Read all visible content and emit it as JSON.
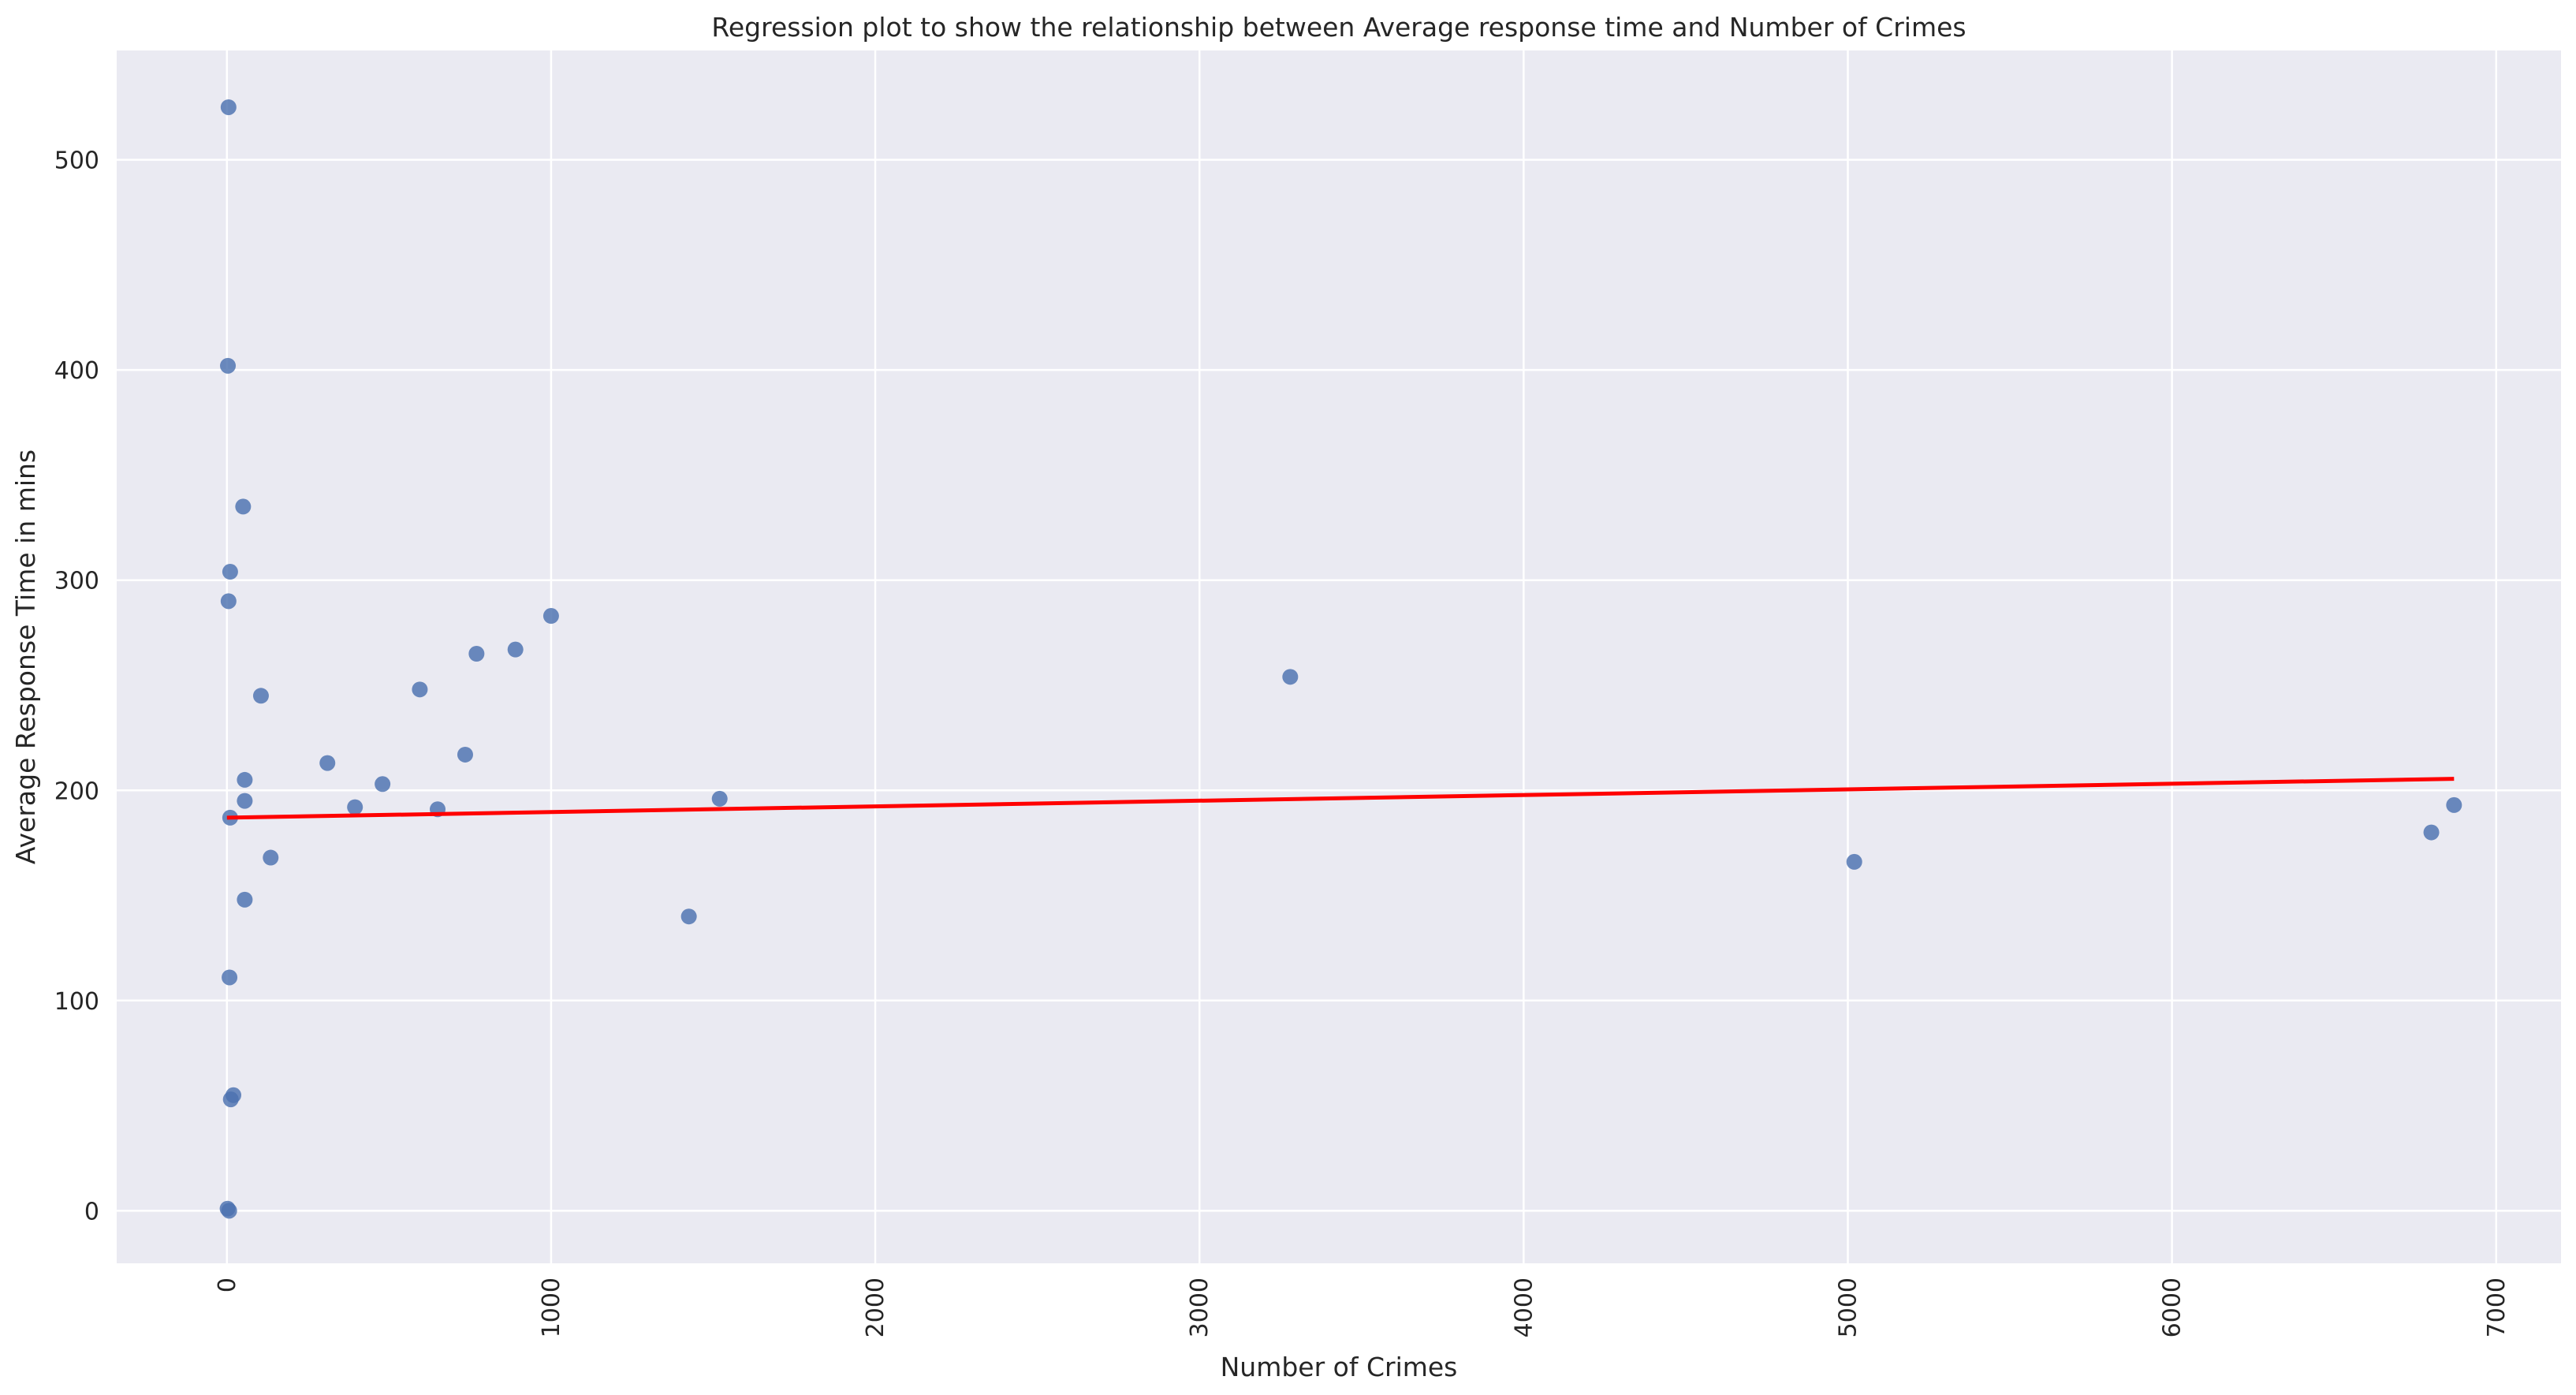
{
  "chart_data": {
    "type": "scatter",
    "title": "Regression plot to show the relationship between Average response time and Number of Crimes",
    "xlabel": "Number of Crimes",
    "ylabel": "Average Response Time in mins",
    "xlim": [
      -340,
      7200
    ],
    "ylim": [
      -25,
      552
    ],
    "xticks": [
      0,
      1000,
      2000,
      3000,
      4000,
      5000,
      6000,
      7000
    ],
    "yticks": [
      0,
      100,
      200,
      300,
      400,
      500
    ],
    "xtick_labels": [
      "0",
      "1000",
      "2000",
      "3000",
      "4000",
      "5000",
      "6000",
      "7000"
    ],
    "ytick_labels": [
      "0",
      "100",
      "200",
      "300",
      "400",
      "500"
    ],
    "grid": true,
    "background": "#eaeaf2",
    "grid_color": "#ffffff",
    "point_color": "#4c72b0",
    "line_color": "#ff0000",
    "points": [
      {
        "x": 5,
        "y": 525
      },
      {
        "x": 3,
        "y": 402
      },
      {
        "x": 50,
        "y": 335
      },
      {
        "x": 10,
        "y": 304
      },
      {
        "x": 5,
        "y": 290
      },
      {
        "x": 105,
        "y": 245
      },
      {
        "x": 55,
        "y": 205
      },
      {
        "x": 55,
        "y": 195
      },
      {
        "x": 10,
        "y": 187
      },
      {
        "x": 135,
        "y": 168
      },
      {
        "x": 55,
        "y": 148
      },
      {
        "x": 8,
        "y": 111
      },
      {
        "x": 20,
        "y": 55
      },
      {
        "x": 12,
        "y": 53
      },
      {
        "x": 2,
        "y": 1
      },
      {
        "x": 7,
        "y": 0
      },
      {
        "x": 310,
        "y": 213
      },
      {
        "x": 395,
        "y": 192
      },
      {
        "x": 480,
        "y": 203
      },
      {
        "x": 595,
        "y": 248
      },
      {
        "x": 650,
        "y": 191
      },
      {
        "x": 735,
        "y": 217
      },
      {
        "x": 770,
        "y": 265
      },
      {
        "x": 890,
        "y": 267
      },
      {
        "x": 1000,
        "y": 283
      },
      {
        "x": 1425,
        "y": 140
      },
      {
        "x": 1520,
        "y": 196
      },
      {
        "x": 3280,
        "y": 254
      },
      {
        "x": 5020,
        "y": 166
      },
      {
        "x": 6800,
        "y": 180
      },
      {
        "x": 6870,
        "y": 193
      }
    ],
    "regression_line": {
      "x": [
        0,
        6870
      ],
      "y": [
        187,
        205.5
      ]
    }
  }
}
